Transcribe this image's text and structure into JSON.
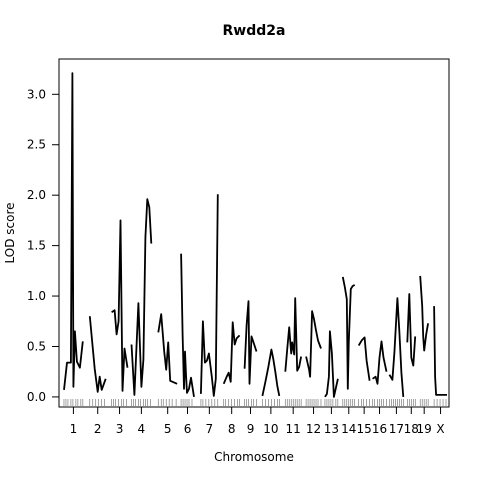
{
  "chart_data": {
    "type": "line",
    "title": "Rwdd2a",
    "xlabel": "Chromosome",
    "ylabel": "LOD score",
    "ylim": [
      -0.1,
      3.35
    ],
    "yticks": [
      0.0,
      0.5,
      1.0,
      1.5,
      2.0,
      2.5,
      3.0
    ],
    "ytick_labels": [
      "0.0",
      "0.5",
      "1.0",
      "1.5",
      "2.0",
      "2.5",
      "3.0"
    ],
    "xlim": [
      0,
      388
    ],
    "grid": false,
    "chromosomes": [
      {
        "name": "1",
        "label": "1",
        "start": 2,
        "end": 21,
        "x": [
          2,
          5,
          9,
          10.5,
          11.5,
          13,
          15,
          18,
          21
        ],
        "y": [
          0.07,
          0.34,
          0.34,
          3.21,
          0.1,
          0.65,
          0.35,
          0.29,
          0.55
        ]
      },
      {
        "name": "2",
        "label": "2",
        "start": 28,
        "end": 44,
        "x": [
          28,
          33,
          36,
          38,
          40,
          44
        ],
        "y": [
          0.8,
          0.28,
          0.05,
          0.2,
          0.07,
          0.18
        ]
      },
      {
        "name": "3",
        "label": "3",
        "start": 50,
        "end": 66,
        "x": [
          50,
          53,
          55,
          57,
          59,
          61,
          63,
          66
        ],
        "y": [
          0.84,
          0.86,
          0.62,
          0.75,
          1.75,
          0.06,
          0.48,
          0.29
        ]
      },
      {
        "name": "4",
        "label": "4",
        "start": 70,
        "end": 90,
        "x": [
          70,
          73,
          77,
          80,
          82,
          84,
          86,
          88,
          90
        ],
        "y": [
          0.52,
          0.02,
          0.93,
          0.1,
          0.37,
          1.58,
          1.96,
          1.88,
          1.52
        ]
      },
      {
        "name": "5",
        "label": "5",
        "start": 97,
        "end": 116,
        "x": [
          97,
          100,
          103,
          105,
          107,
          109,
          116
        ],
        "y": [
          0.64,
          0.82,
          0.45,
          0.27,
          0.54,
          0.16,
          0.13
        ]
      },
      {
        "name": "6",
        "label": "6",
        "start": 120,
        "end": 133,
        "x": [
          120,
          121.5,
          123,
          124,
          125,
          126,
          128,
          130,
          133
        ],
        "y": [
          1.42,
          0.62,
          0.08,
          0.45,
          0.22,
          0.04,
          0.08,
          0.19,
          0.0
        ]
      },
      {
        "name": "7",
        "label": "7",
        "start": 140,
        "end": 157,
        "x": [
          140,
          142,
          144,
          146,
          148,
          151,
          153,
          155,
          157
        ],
        "y": [
          0.03,
          0.75,
          0.34,
          0.36,
          0.43,
          0.2,
          0.01,
          0.18,
          2.01
        ]
      },
      {
        "name": "8",
        "label": "8",
        "start": 163,
        "end": 179,
        "x": [
          163,
          166,
          168,
          170,
          172,
          174,
          176,
          179
        ],
        "y": [
          0.13,
          0.2,
          0.24,
          0.15,
          0.74,
          0.52,
          0.58,
          0.61
        ]
      },
      {
        "name": "9",
        "label": "9",
        "start": 184,
        "end": 196,
        "x": [
          184,
          186,
          188,
          189,
          191,
          193,
          196
        ],
        "y": [
          0.28,
          0.71,
          0.95,
          0.13,
          0.6,
          0.54,
          0.45
        ]
      },
      {
        "name": "10",
        "label": "10",
        "start": 202,
        "end": 219,
        "x": [
          202,
          205,
          208,
          211,
          213,
          215,
          217,
          219
        ],
        "y": [
          0.01,
          0.15,
          0.3,
          0.47,
          0.37,
          0.25,
          0.11,
          0.01
        ]
      },
      {
        "name": "11",
        "label": "11",
        "start": 225,
        "end": 241,
        "x": [
          225,
          227,
          229,
          231,
          232,
          234,
          235,
          237,
          239,
          241
        ],
        "y": [
          0.25,
          0.47,
          0.69,
          0.43,
          0.54,
          0.42,
          0.98,
          0.26,
          0.3,
          0.4
        ]
      },
      {
        "name": "12",
        "label": "12",
        "start": 246,
        "end": 261,
        "x": [
          246,
          249,
          250,
          252,
          254,
          256,
          258,
          261
        ],
        "y": [
          0.4,
          0.27,
          0.2,
          0.85,
          0.77,
          0.66,
          0.56,
          0.48
        ]
      },
      {
        "name": "13",
        "label": "13",
        "start": 265,
        "end": 278,
        "x": [
          265,
          267,
          269,
          270,
          272,
          274,
          278
        ],
        "y": [
          0.0,
          0.03,
          0.2,
          0.65,
          0.43,
          0.0,
          0.18
        ]
      },
      {
        "name": "14",
        "label": "14",
        "start": 283,
        "end": 295,
        "x": [
          283,
          285,
          287,
          288,
          289,
          291,
          293,
          295
        ],
        "y": [
          1.19,
          1.09,
          0.97,
          0.08,
          0.55,
          1.07,
          1.1,
          1.11
        ]
      },
      {
        "name": "15",
        "label": "15",
        "start": 299,
        "end": 310,
        "x": [
          299,
          302,
          305,
          307,
          310
        ],
        "y": [
          0.51,
          0.56,
          0.59,
          0.36,
          0.16
        ]
      },
      {
        "name": "16",
        "label": "16",
        "start": 313,
        "end": 327,
        "x": [
          313,
          316,
          318,
          320,
          322,
          324,
          327
        ],
        "y": [
          0.18,
          0.2,
          0.13,
          0.39,
          0.55,
          0.39,
          0.25
        ]
      },
      {
        "name": "17",
        "label": "17",
        "start": 330,
        "end": 344,
        "x": [
          330,
          333,
          335,
          338,
          340,
          342,
          344
        ],
        "y": [
          0.22,
          0.17,
          0.44,
          0.98,
          0.64,
          0.24,
          0.0
        ]
      },
      {
        "name": "18",
        "label": "18",
        "start": 348,
        "end": 356,
        "x": [
          348,
          350,
          352,
          354,
          356
        ],
        "y": [
          0.54,
          1.02,
          0.39,
          0.31,
          0.6
        ]
      },
      {
        "name": "19",
        "label": "19",
        "start": 361,
        "end": 369,
        "x": [
          361,
          363,
          364,
          365,
          367,
          369
        ],
        "y": [
          1.2,
          0.9,
          0.6,
          0.46,
          0.62,
          0.73
        ]
      },
      {
        "name": "X",
        "label": "X",
        "start": 375,
        "end": 388,
        "x": [
          375,
          376,
          377,
          383,
          388
        ],
        "y": [
          0.9,
          0.2,
          0.02,
          0.02,
          0.02
        ]
      }
    ],
    "markers": [
      2,
      4,
      6,
      9,
      11,
      14,
      16,
      19,
      21,
      28,
      31,
      34,
      37,
      40,
      43,
      50,
      52,
      54,
      57,
      60,
      62,
      65,
      70,
      72,
      74,
      77,
      79,
      82,
      84,
      86,
      89,
      97,
      100,
      102,
      105,
      108,
      111,
      115,
      120,
      122,
      124,
      126,
      128,
      131,
      140,
      142,
      145,
      148,
      151,
      154,
      157,
      163,
      165,
      168,
      171,
      174,
      177,
      179,
      184,
      186,
      188,
      191,
      193,
      196,
      202,
      205,
      208,
      211,
      214,
      217,
      219,
      225,
      227,
      229,
      231,
      233,
      235,
      237,
      239,
      241,
      246,
      248,
      250,
      252,
      254,
      256,
      258,
      261,
      265,
      267,
      269,
      271,
      273,
      276,
      278,
      283,
      285,
      287,
      289,
      291,
      293,
      295,
      299,
      302,
      304,
      307,
      310,
      313,
      315,
      318,
      320,
      322,
      324,
      327,
      330,
      332,
      334,
      336,
      338,
      340,
      342,
      344,
      348,
      350,
      352,
      354,
      356,
      361,
      363,
      365,
      367,
      369,
      375,
      378,
      381,
      384,
      387
    ]
  }
}
